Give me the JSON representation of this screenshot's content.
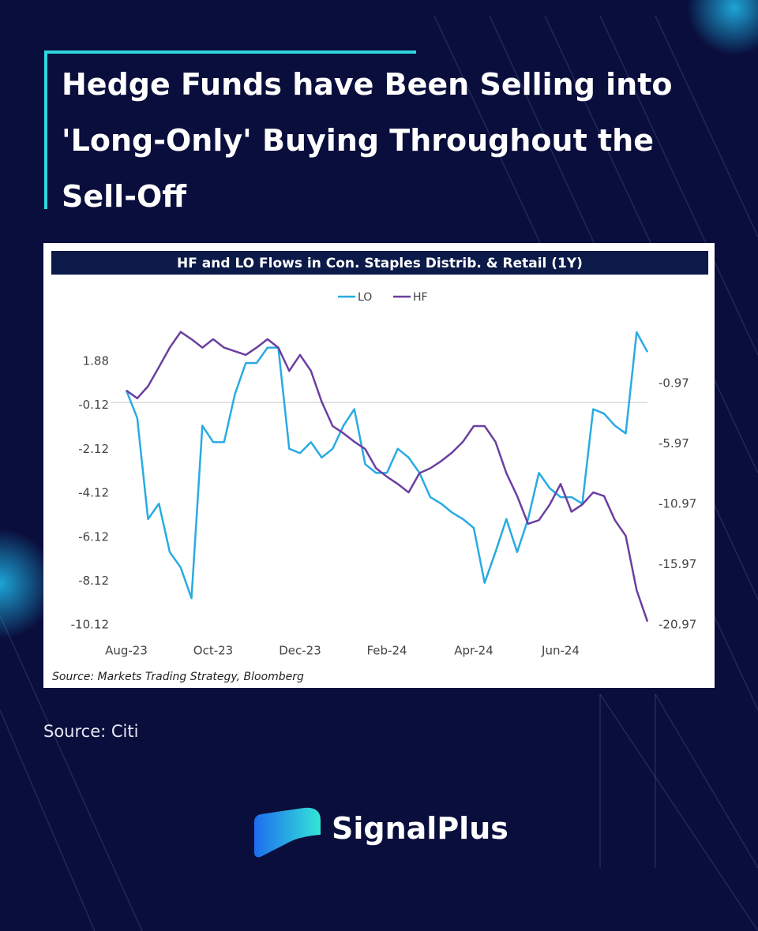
{
  "header": {
    "title": "Hedge Funds have Been Selling into 'Long-Only' Buying Throughout the Sell-Off"
  },
  "chart_data": {
    "type": "line",
    "title": "HF and LO Flows in Con. Staples Distrib. & Retail (1Y)",
    "source": "Source: Markets Trading Strategy, Bloomberg",
    "categories": [
      "Aug-23",
      null,
      null,
      null,
      null,
      null,
      null,
      null,
      "Oct-23",
      null,
      null,
      null,
      null,
      null,
      null,
      null,
      "Dec-23",
      null,
      null,
      null,
      null,
      null,
      null,
      null,
      "Feb-24",
      null,
      null,
      null,
      null,
      null,
      null,
      null,
      "Apr-24",
      null,
      null,
      null,
      null,
      null,
      null,
      null,
      "Jun-24",
      null,
      null,
      null,
      null,
      null,
      null,
      null,
      null
    ],
    "series": [
      {
        "name": "LO",
        "color": "#29abe2",
        "values": [
          0.56,
          -0.7,
          -5.3,
          -4.6,
          -6.8,
          -7.5,
          -8.9,
          -1.05,
          -1.8,
          -1.8,
          0.38,
          1.8,
          1.8,
          2.5,
          2.5,
          -2.1,
          -2.3,
          -1.8,
          -2.5,
          -2.1,
          -1.05,
          -0.3,
          -2.8,
          -3.2,
          -3.2,
          -2.1,
          -2.5,
          -3.2,
          -4.3,
          -4.6,
          -5.0,
          -5.3,
          -5.7,
          -8.2,
          -6.8,
          -5.3,
          -6.8,
          -5.3,
          -3.2,
          -3.9,
          -4.3,
          -4.3,
          -4.6,
          -0.3,
          -0.5,
          -1.05,
          -1.4,
          3.2,
          2.3
        ]
      },
      {
        "name": "HF",
        "color": "#6b3fa0",
        "axis": "y2",
        "values": [
          -1.55,
          -2.2,
          -1.2,
          0.39,
          2.0,
          3.3,
          2.7,
          2.0,
          2.7,
          2.0,
          1.7,
          1.4,
          2.0,
          2.7,
          2.0,
          0.07,
          1.4,
          0.07,
          -2.5,
          -4.5,
          -5.1,
          -5.8,
          -6.4,
          -8.0,
          -8.7,
          -9.3,
          -10.0,
          -8.4,
          -8.0,
          -7.4,
          -6.7,
          -5.8,
          -4.5,
          -4.5,
          -5.8,
          -8.4,
          -10.3,
          -12.6,
          -12.3,
          -11.0,
          -9.3,
          -11.6,
          -11.0,
          -10.0,
          -10.3,
          -12.3,
          -13.6,
          -18.1,
          -20.7
        ]
      }
    ],
    "ylim": [
      -10.4,
      3.6
    ],
    "yticks": [
      1.88,
      -0.12,
      -2.12,
      -4.12,
      -6.12,
      -8.12,
      -10.12
    ],
    "y2lim": [
      -21.5,
      4
    ],
    "y2ticks": [
      -0.97,
      -5.97,
      -10.97,
      -15.97,
      -20.97
    ],
    "reference_line": 0
  },
  "footer": {
    "source": "Source: Citi",
    "brand": "SignalPlus"
  }
}
